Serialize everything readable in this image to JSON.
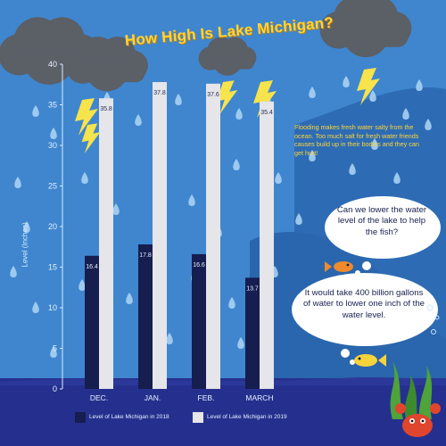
{
  "colors": {
    "sky": "#3f86cf",
    "wave_dark": "#2d6cb4",
    "ground": "#25308e",
    "bar_2018": "#161d4f",
    "bar_2019": "#e5e5ea",
    "cloud": "#5b5f66",
    "lightning": "#f7e34b",
    "title": "#ffd43b"
  },
  "icons": [
    "cloud-icon",
    "lightning-icon",
    "raindrop-icon",
    "fish-icon",
    "crab-icon",
    "seaweed-icon",
    "thought-bubble-icon"
  ],
  "note_text": "Flooding makes fresh water salty from the ocean. Too much salt for fresh water friends causes build up in their bodies and they can get hurt!",
  "bubble_question": "Can we lower the water level of the lake to help the fish?",
  "bubble_answer": "It would take 400 billion gallons of water to lower one inch of the water level.",
  "chart_data": {
    "type": "bar",
    "title": "How High Is Lake Michigan?",
    "categories": [
      "DEC.",
      "JAN.",
      "FEB.",
      "MARCH"
    ],
    "series": [
      {
        "name": "Level of Lake Michigan in 2018",
        "values": [
          16.4,
          17.8,
          16.6,
          13.7
        ],
        "labels": [
          "16.4",
          "17.8",
          "16.6",
          "13.7"
        ]
      },
      {
        "name": "Level of Lake Michigan in 2019",
        "values": [
          35.8,
          37.8,
          37.6,
          35.4
        ],
        "labels": [
          "35.8",
          "37.8",
          "37.6",
          "35.4"
        ]
      }
    ],
    "ylabel": "Level (Inches)",
    "ylim": [
      0,
      40
    ],
    "yticks": [
      0,
      5,
      10,
      15,
      20,
      25,
      30,
      35,
      40
    ],
    "grid": false,
    "legend": "bottom"
  }
}
